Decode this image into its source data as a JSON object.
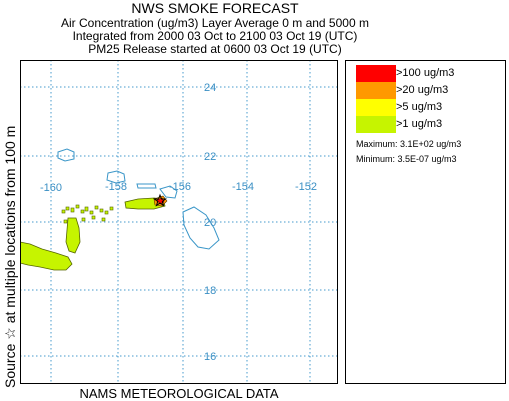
{
  "header": {
    "title": "NWS SMOKE FORECAST",
    "line2": "Air Concentration (ug/m3) Layer Average    0 m and  5000 m",
    "line3": "Integrated from 2000 03 Oct to 2100 03 Oct 19 (UTC)",
    "line4": "PM25 Release started at 0600 03 Oct 19 (UTC)"
  },
  "side_label": "Source ☆   at multiple locations   from  100 m",
  "footer": "NAMS METEOROLOGICAL DATA",
  "map": {
    "lon_labels": [
      "-160",
      "-158",
      "-156",
      "-154",
      "-152"
    ],
    "lat_labels": [
      "24",
      "22",
      "20",
      "18",
      "16"
    ],
    "colors": {
      "grid": "#4499cc",
      "coast": "#3a96c8",
      "smoke_light": "#c6f400",
      "source": "#ff0000"
    },
    "source_icon": "star-icon"
  },
  "legend": {
    "items": [
      {
        "label": ">100 ug/m3",
        "color": "#ff0000"
      },
      {
        "label": ">20 ug/m3",
        "color": "#ff9900"
      },
      {
        "label": ">5 ug/m3",
        "color": "#ffff00"
      },
      {
        "label": ">1 ug/m3",
        "color": "#c6f400"
      }
    ],
    "maximum": "Maximum: 3.1E+02 ug/m3",
    "minimum": "Minimum: 3.5E-07 ug/m3"
  }
}
